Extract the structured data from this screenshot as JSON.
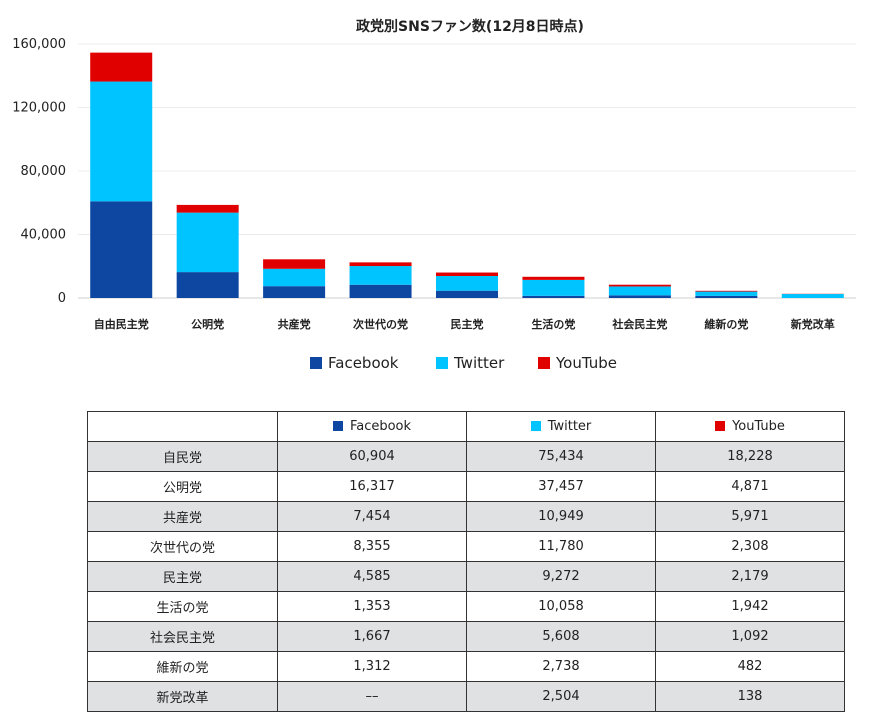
{
  "chart_data": {
    "type": "bar",
    "stacked": true,
    "title": "政党別SNSファン数(12月8日時点)",
    "categories": [
      "自由民主党",
      "公明党",
      "共産党",
      "次世代の党",
      "民主党",
      "生活の党",
      "社会民主党",
      "維新の党",
      "新党改革"
    ],
    "series": [
      {
        "name": "Facebook",
        "color": "#0d47a1",
        "values": [
          60904,
          16317,
          7454,
          8355,
          4585,
          1353,
          1667,
          1312,
          0
        ]
      },
      {
        "name": "Twitter",
        "color": "#00c4ff",
        "values": [
          75434,
          37457,
          10949,
          11780,
          9272,
          10058,
          5608,
          2738,
          2504
        ]
      },
      {
        "name": "YouTube",
        "color": "#e00000",
        "values": [
          18228,
          4871,
          5971,
          2308,
          2179,
          1942,
          1092,
          482,
          138
        ]
      }
    ],
    "ylim": [
      0,
      160000
    ],
    "yticks": [
      "0",
      "40,000",
      "80,000",
      "120,000",
      "160,000"
    ],
    "grid": true,
    "legend": "bottom"
  },
  "table": {
    "headers": [
      "",
      "Facebook",
      "Twitter",
      "YouTube"
    ],
    "rows": [
      [
        "自民党",
        "60,904",
        "75,434",
        "18,228"
      ],
      [
        "公明党",
        "16,317",
        "37,457",
        "4,871"
      ],
      [
        "共産党",
        "7,454",
        "10,949",
        "5,971"
      ],
      [
        "次世代の党",
        "8,355",
        "11,780",
        "2,308"
      ],
      [
        "民主党",
        "4,585",
        "9,272",
        "2,179"
      ],
      [
        "生活の党",
        "1,353",
        "10,058",
        "1,942"
      ],
      [
        "社会民主党",
        "1,667",
        "5,608",
        "1,092"
      ],
      [
        "維新の党",
        "1,312",
        "2,738",
        "482"
      ],
      [
        "新党改革",
        "––",
        "2,504",
        "138"
      ]
    ]
  }
}
